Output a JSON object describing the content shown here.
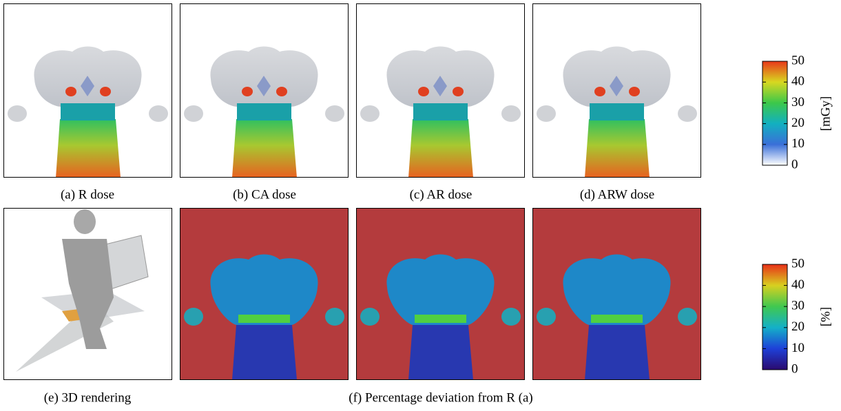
{
  "top_row": {
    "captions": [
      "(a) R dose",
      "(b) CA dose",
      "(c) AR dose",
      "(d) ARW dose"
    ]
  },
  "dose_colorbar": {
    "label": "[mGy]",
    "ticks": [
      0,
      10,
      20,
      30,
      40,
      50
    ]
  },
  "bottom_row": {
    "rendering_caption": "(e) 3D rendering",
    "deviation_caption": "(f) Percentage deviation from R (a)"
  },
  "deviation_colorbar": {
    "label": "[%]",
    "ticks": [
      0,
      10,
      20,
      30,
      40,
      50
    ]
  }
}
